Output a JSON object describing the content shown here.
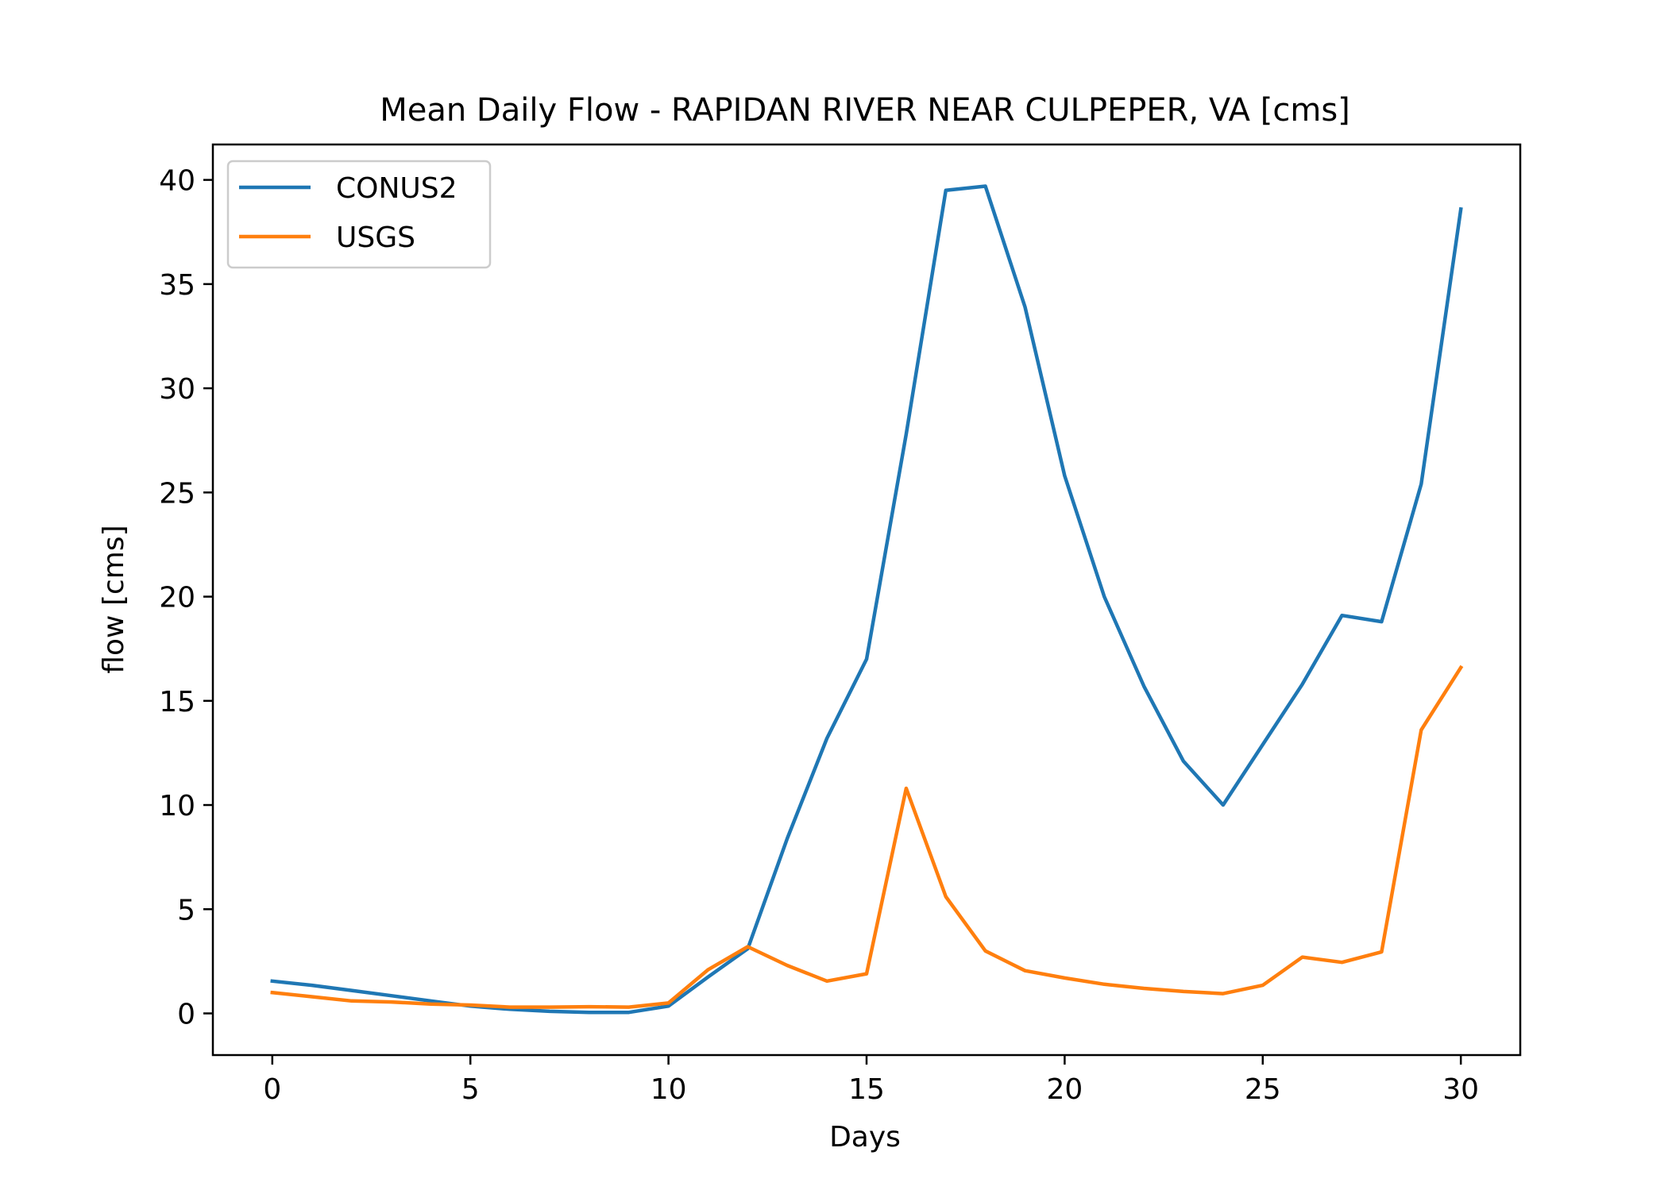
{
  "chart_data": {
    "type": "line",
    "title": "Mean Daily Flow - RAPIDAN RIVER NEAR CULPEPER, VA [cms]",
    "xlabel": "Days",
    "ylabel": "flow [cms]",
    "xlim": [
      -1.5,
      31.5
    ],
    "ylim": [
      -2,
      41.7
    ],
    "xticks": [
      0,
      5,
      10,
      15,
      20,
      25,
      30
    ],
    "yticks": [
      0,
      5,
      10,
      15,
      20,
      25,
      30,
      35,
      40
    ],
    "grid": false,
    "legend_position": "top-left",
    "x": [
      0,
      1,
      2,
      3,
      4,
      5,
      6,
      7,
      8,
      9,
      10,
      11,
      12,
      13,
      14,
      15,
      16,
      17,
      18,
      19,
      20,
      21,
      22,
      23,
      24,
      25,
      26,
      27,
      28,
      29,
      30
    ],
    "series": [
      {
        "name": "CONUS2",
        "color": "#1f77b4",
        "values": [
          1.55,
          1.35,
          1.1,
          0.85,
          0.6,
          0.35,
          0.2,
          0.1,
          0.05,
          0.05,
          0.35,
          1.75,
          3.1,
          8.4,
          13.2,
          17.0,
          27.8,
          39.5,
          39.7,
          33.9,
          25.8,
          20.0,
          15.7,
          12.1,
          10.0,
          12.9,
          15.8,
          19.1,
          18.8,
          25.4,
          38.6
        ]
      },
      {
        "name": "USGS",
        "color": "#ff7f0e",
        "values": [
          1.0,
          0.8,
          0.6,
          0.55,
          0.45,
          0.4,
          0.3,
          0.3,
          0.32,
          0.3,
          0.5,
          2.1,
          3.2,
          2.3,
          1.55,
          1.9,
          10.8,
          5.6,
          3.0,
          2.05,
          1.7,
          1.4,
          1.2,
          1.05,
          0.95,
          1.35,
          2.7,
          2.45,
          2.95,
          13.6,
          16.6
        ]
      }
    ]
  }
}
